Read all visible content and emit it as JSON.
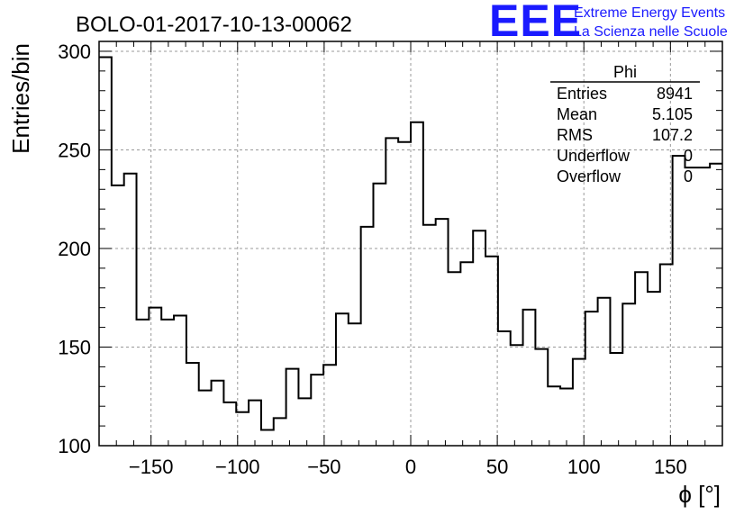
{
  "header": {
    "title": "BOLO-01-2017-10-13-00062",
    "logo_mark": "EEE",
    "logo_line1": "Extreme Energy Events",
    "logo_line2": "La Scienza nelle Scuole"
  },
  "stats_box": {
    "name": "Phi",
    "rows": [
      {
        "label": "Entries",
        "value": "8941"
      },
      {
        "label": "Mean",
        "value": "5.105"
      },
      {
        "label": "RMS",
        "value": "107.2"
      },
      {
        "label": "Underflow",
        "value": "0"
      },
      {
        "label": "Overflow",
        "value": "0"
      }
    ]
  },
  "chart_data": {
    "type": "histogram",
    "title": "BOLO-01-2017-10-13-00062",
    "xlabel": "ϕ [°]",
    "ylabel": "Entries/bin",
    "xlim": [
      -180,
      180
    ],
    "ylim": [
      100,
      305
    ],
    "bin_width": 7.2,
    "xticks": [
      -150,
      -100,
      -50,
      0,
      50,
      100,
      150
    ],
    "yticks": [
      100,
      150,
      200,
      250,
      300
    ],
    "grid": true,
    "values": [
      297,
      232,
      238,
      164,
      170,
      164,
      166,
      142,
      128,
      133,
      122,
      117,
      123,
      108,
      114,
      139,
      124,
      136,
      141,
      167,
      162,
      211,
      233,
      256,
      254,
      264,
      212,
      215,
      188,
      193,
      209,
      196,
      158,
      151,
      169,
      149,
      130,
      129,
      144,
      168,
      175,
      147,
      172,
      188,
      178,
      192,
      247,
      241,
      241,
      243
    ]
  }
}
